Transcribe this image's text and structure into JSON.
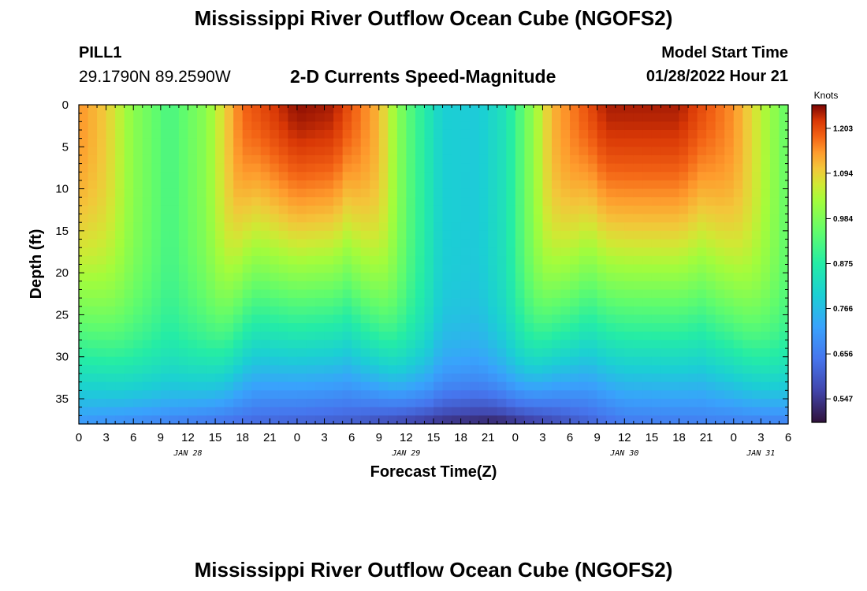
{
  "header": {
    "title": "Mississippi River Outflow Ocean Cube (NGOFS2)",
    "station": "PILL1",
    "coords": "29.1790N  89.2590W",
    "subtitle": "2-D Currents Speed-Magnitude",
    "model_start_label": "Model Start Time",
    "model_start_value": "01/28/2022 Hour 21"
  },
  "footer": {
    "title": "Mississippi River Outflow Ocean Cube (NGOFS2)"
  },
  "chart_data": {
    "type": "heatmap",
    "title": "2-D Currents Speed-Magnitude",
    "xlabel": "Forecast Time(Z)",
    "ylabel": "Depth (ft)",
    "x_tick_labels": [
      "0",
      "3",
      "6",
      "9",
      "12",
      "15",
      "18",
      "21",
      "0",
      "3",
      "6",
      "9",
      "12",
      "15",
      "18",
      "21",
      "0",
      "3",
      "6",
      "9",
      "12",
      "15",
      "18",
      "21",
      "0",
      "3",
      "6"
    ],
    "x_range_hours": [
      0,
      78
    ],
    "date_labels": [
      {
        "label": "JAN 28",
        "hour": 12
      },
      {
        "label": "JAN 29",
        "hour": 36
      },
      {
        "label": "JAN 30",
        "hour": 60
      },
      {
        "label": "JAN 31",
        "hour": 75
      }
    ],
    "y_ticks": [
      0,
      5,
      10,
      15,
      20,
      25,
      30,
      35
    ],
    "y_tick_labels": [
      "0",
      "5",
      "10",
      "15",
      "20",
      "25",
      "30",
      "35"
    ],
    "y_range": [
      0,
      38
    ],
    "y_inverted": true,
    "colorbar": {
      "unit": "Knots",
      "min": 0.49,
      "max": 1.26,
      "ticks": [
        1.203,
        1.094,
        0.984,
        0.875,
        0.766,
        0.656,
        0.547
      ],
      "tick_labels": [
        "1.203",
        "1.094",
        "0.984",
        "0.875",
        "0.766",
        "0.656",
        "0.547"
      ]
    },
    "field": {
      "description_keys": [
        "surface_speed_by_hour",
        "bottom_speed"
      ],
      "surface_speed_by_hour": [
        [
          0,
          1.15
        ],
        [
          3,
          1.1
        ],
        [
          6,
          1.0
        ],
        [
          10,
          0.92
        ],
        [
          14,
          1.0
        ],
        [
          18,
          1.18
        ],
        [
          24,
          1.25
        ],
        [
          28,
          1.24
        ],
        [
          33,
          1.12
        ],
        [
          36,
          0.95
        ],
        [
          40,
          0.8
        ],
        [
          44,
          0.79
        ],
        [
          47,
          0.85
        ],
        [
          52,
          1.12
        ],
        [
          58,
          1.24
        ],
        [
          66,
          1.24
        ],
        [
          72,
          1.15
        ],
        [
          76,
          1.02
        ],
        [
          78,
          0.95
        ]
      ],
      "bottom_speed_by_hour": [
        [
          0,
          0.7
        ],
        [
          10,
          0.66
        ],
        [
          20,
          0.62
        ],
        [
          30,
          0.6
        ],
        [
          40,
          0.53
        ],
        [
          46,
          0.51
        ],
        [
          52,
          0.57
        ],
        [
          60,
          0.65
        ],
        [
          70,
          0.66
        ],
        [
          78,
          0.66
        ]
      ]
    }
  }
}
